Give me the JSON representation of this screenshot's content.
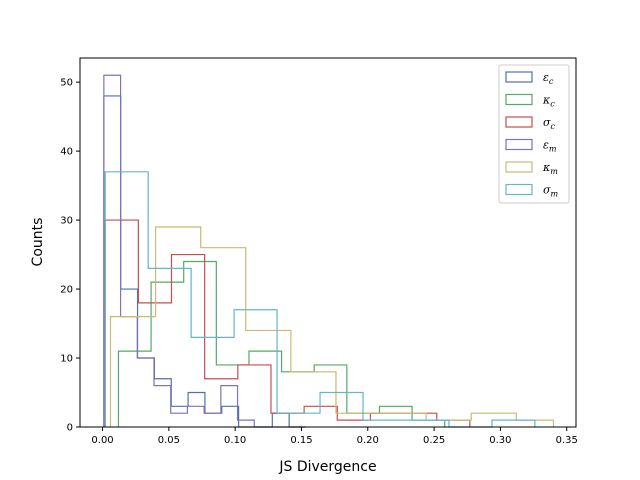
{
  "chart_data": {
    "type": "histogram",
    "xlabel": "JS Divergence",
    "ylabel": "Counts",
    "xlim": [
      -0.017,
      0.357
    ],
    "ylim": [
      0,
      53.5
    ],
    "xticks": [
      0.0,
      0.05,
      0.1,
      0.15,
      0.2,
      0.25,
      0.3,
      0.35
    ],
    "xtick_labels": [
      "0.00",
      "0.05",
      "0.10",
      "0.15",
      "0.20",
      "0.25",
      "0.30",
      "0.35"
    ],
    "yticks": [
      0,
      10,
      20,
      30,
      40,
      50
    ],
    "ytick_labels": [
      "0",
      "10",
      "20",
      "30",
      "40",
      "50"
    ],
    "grid": false,
    "legend_position": "top-right",
    "series": [
      {
        "name": "ε",
        "sub": "c",
        "color": "#4c72b0",
        "bins": [
          0.001,
          0.0137,
          0.0264,
          0.0391,
          0.0518,
          0.0645,
          0.0772,
          0.0899,
          0.1026,
          0.1153,
          0.128,
          0.1407,
          0.1534
        ],
        "counts": [
          48,
          20,
          10,
          7,
          3,
          5,
          2,
          3,
          0,
          0,
          2,
          0
        ]
      },
      {
        "name": "κ",
        "sub": "c",
        "color": "#55a868",
        "bins": [
          0.012,
          0.0366,
          0.0612,
          0.0858,
          0.1104,
          0.135,
          0.1596,
          0.1842,
          0.2088,
          0.2334,
          0.258
        ],
        "counts": [
          11,
          21,
          24,
          9,
          11,
          8,
          9,
          2,
          3,
          1
        ]
      },
      {
        "name": "σ",
        "sub": "c",
        "color": "#c44e52",
        "bins": [
          0.002,
          0.027,
          0.052,
          0.077,
          0.102,
          0.127,
          0.152,
          0.177,
          0.202,
          0.227,
          0.252,
          0.277
        ],
        "counts": [
          30,
          18,
          25,
          7,
          9,
          2,
          3,
          1,
          2,
          2,
          1
        ]
      },
      {
        "name": "ε",
        "sub": "m",
        "color": "#8172b2",
        "bins": [
          0.001,
          0.0136,
          0.0262,
          0.0388,
          0.0514,
          0.064,
          0.0766,
          0.0892,
          0.1018,
          0.1144,
          0.127,
          0.1396,
          0.1522
        ],
        "counts": [
          51,
          16,
          10,
          6,
          2,
          3,
          2,
          6,
          1,
          0,
          0,
          0
        ]
      },
      {
        "name": "κ",
        "sub": "m",
        "color": "#ccb974",
        "bins": [
          0.006,
          0.04,
          0.074,
          0.108,
          0.142,
          0.176,
          0.21,
          0.244,
          0.278,
          0.312,
          0.34
        ],
        "counts": [
          16,
          29,
          26,
          14,
          8,
          2,
          2,
          1,
          2,
          1
        ]
      },
      {
        "name": "σ",
        "sub": "m",
        "color": "#64b5cd",
        "bins": [
          0.002,
          0.0344,
          0.0668,
          0.0992,
          0.1316,
          0.164,
          0.1964,
          0.2288,
          0.2612,
          0.2936,
          0.326
        ],
        "counts": [
          37,
          23,
          13,
          17,
          2,
          5,
          1,
          1,
          0,
          1
        ]
      }
    ]
  }
}
